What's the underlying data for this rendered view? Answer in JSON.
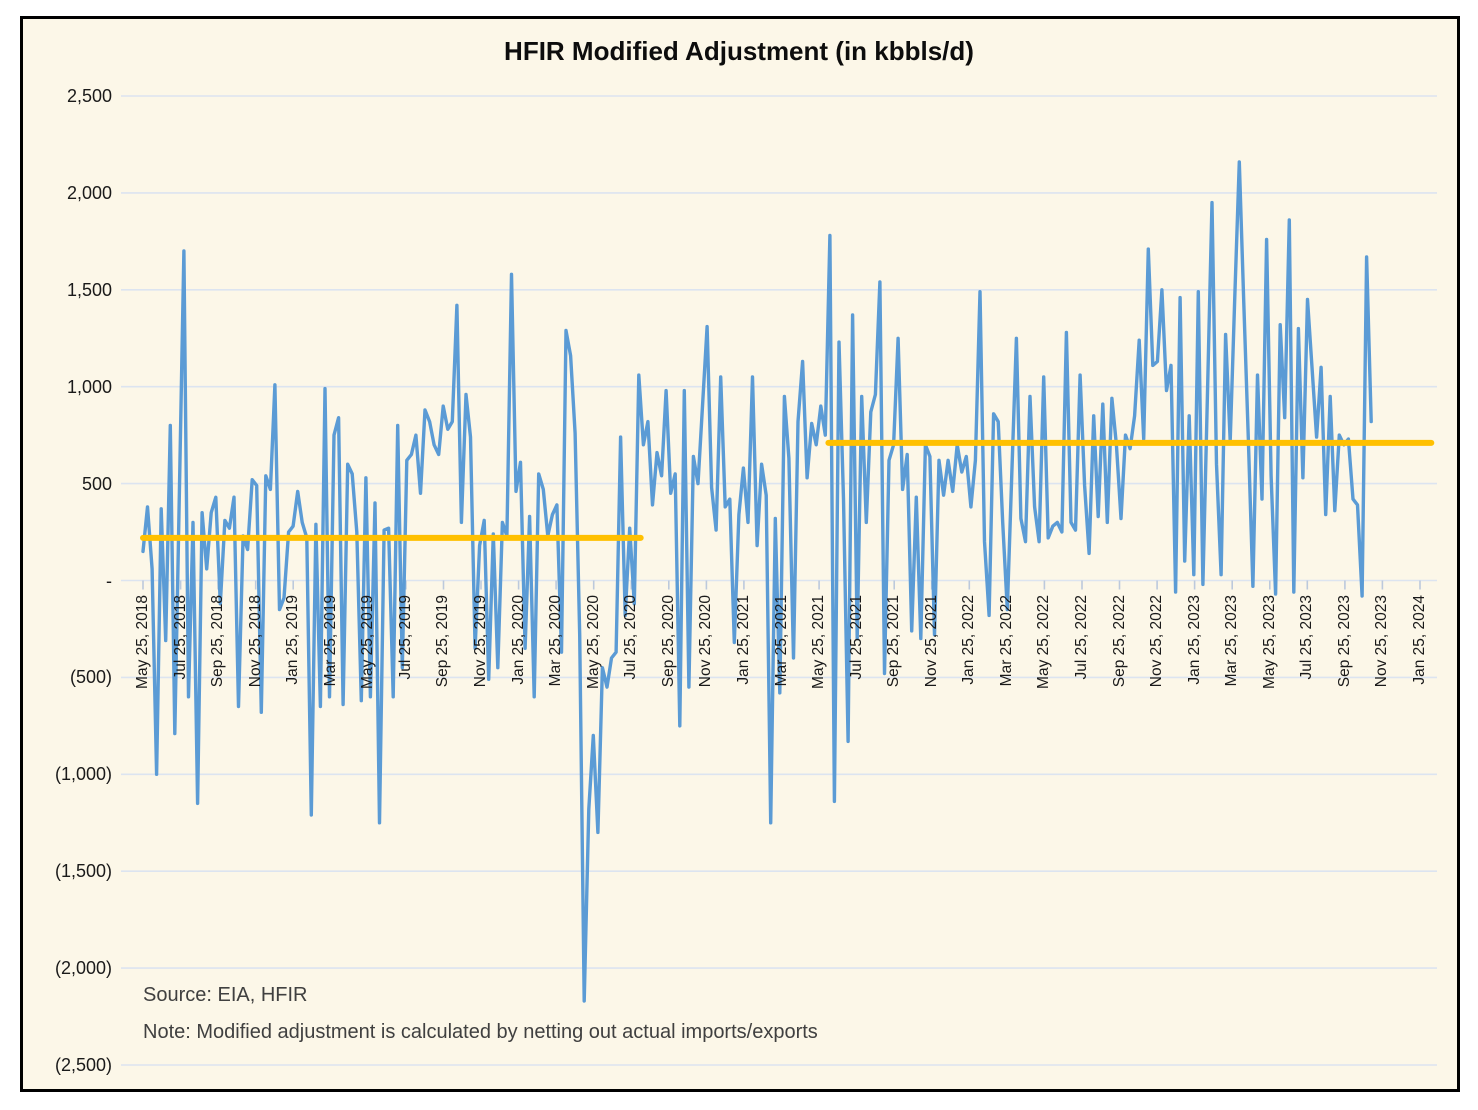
{
  "page": {
    "title": "HFIR Modified Adjustment (in kbbls/d)"
  },
  "notes": {
    "source": "Source: EIA, HFIR",
    "method": "Note: Modified adjustment is calculated by netting out actual imports/exports"
  },
  "colors": {
    "background": "#FCF7E8",
    "plot_line": "#5B9BD5",
    "trend_line": "#FFC000",
    "gridline": "#DCE4F0",
    "tick": "#BCC9DC",
    "frame_border": "#000000",
    "axis_text": "#1A1A1A",
    "note_text": "#404040"
  },
  "chart_data": {
    "type": "line",
    "title": "HFIR Modified Adjustment (in kbbls/d)",
    "unit": "kbbls/d",
    "grid": "horizontal",
    "legend": "none",
    "ylim": [
      -2500,
      2500
    ],
    "y_tick_values": [
      2500,
      2000,
      1500,
      1000,
      500,
      0,
      -500,
      -1000,
      -1500,
      -2000,
      -2500
    ],
    "y_tick_labels": [
      "2,500",
      "2,000",
      "1,500",
      "1,000",
      "500",
      "-",
      "(500)",
      "(1,000)",
      "(1,500)",
      "(2,000)",
      "(2,500)"
    ],
    "x_tick_labels": [
      "May 25, 2018",
      "Jul 25, 2018",
      "Sep 25, 2018",
      "Nov 25, 2018",
      "Jan 25, 2019",
      "Mar 25, 2019",
      "May 25, 2019",
      "Jul 25, 2019",
      "Sep 25, 2019",
      "Nov 25, 2019",
      "Jan 25, 2020",
      "Mar 25, 2020",
      "May 25, 2020",
      "Jul 25, 2020",
      "Sep 25, 2020",
      "Nov 25, 2020",
      "Jan 25, 2021",
      "Mar 25, 2021",
      "May 25, 2021",
      "Jul 25, 2021",
      "Sep 25, 2021",
      "Nov 25, 2021",
      "Jan 25, 2022",
      "Mar 25, 2022",
      "May 25, 2022",
      "Jul 25, 2022",
      "Sep 25, 2022",
      "Nov 25, 2022",
      "Jan 25, 2023",
      "Mar 25, 2023",
      "May 25, 2023",
      "Jul 25, 2023",
      "Sep 25, 2023",
      "Nov 25, 2023",
      "Jan 25, 2024"
    ],
    "x_tick_month_step": 2,
    "x_axis_months_total": 68,
    "data_span_months": 65.4,
    "series": [
      {
        "name": "HFIR Modified Adjustment (weekly)",
        "color": "#5B9BD5",
        "values": [
          150,
          380,
          60,
          -1000,
          370,
          -310,
          800,
          -790,
          460,
          1700,
          -600,
          300,
          -1150,
          350,
          60,
          350,
          430,
          -120,
          310,
          270,
          430,
          -650,
          230,
          160,
          520,
          490,
          -680,
          540,
          470,
          1010,
          -150,
          -90,
          250,
          280,
          460,
          300,
          220,
          -1210,
          290,
          -650,
          990,
          -600,
          750,
          840,
          -640,
          600,
          550,
          250,
          -620,
          530,
          -600,
          400,
          -1250,
          260,
          270,
          -600,
          800,
          -450,
          620,
          650,
          750,
          450,
          880,
          820,
          700,
          650,
          900,
          780,
          820,
          1420,
          300,
          960,
          740,
          -350,
          180,
          310,
          -510,
          240,
          -450,
          300,
          230,
          1580,
          460,
          610,
          -350,
          330,
          -600,
          550,
          470,
          230,
          340,
          390,
          -370,
          1290,
          1160,
          760,
          -280,
          -2170,
          -1180,
          -800,
          -1300,
          -450,
          -550,
          -400,
          -370,
          740,
          -180,
          270,
          -120,
          1060,
          700,
          820,
          390,
          660,
          540,
          980,
          450,
          550,
          -750,
          980,
          -550,
          640,
          500,
          900,
          1310,
          480,
          260,
          1050,
          380,
          420,
          -320,
          340,
          580,
          300,
          1050,
          180,
          600,
          440,
          -1250,
          320,
          -580,
          950,
          630,
          -400,
          820,
          1130,
          530,
          810,
          700,
          900,
          750,
          1780,
          -1140,
          1230,
          420,
          -830,
          1370,
          -300,
          950,
          300,
          870,
          960,
          1540,
          -480,
          620,
          700,
          1250,
          470,
          650,
          -260,
          430,
          -300,
          700,
          640,
          -280,
          620,
          440,
          620,
          460,
          700,
          560,
          640,
          380,
          620,
          1490,
          200,
          -180,
          860,
          820,
          300,
          -150,
          550,
          1250,
          320,
          200,
          950,
          380,
          200,
          1050,
          220,
          280,
          300,
          250,
          1280,
          300,
          260,
          1060,
          490,
          140,
          850,
          330,
          910,
          300,
          940,
          700,
          320,
          750,
          680,
          850,
          1240,
          730,
          1710,
          1110,
          1130,
          1500,
          980,
          1110,
          -60,
          1460,
          100,
          850,
          30,
          1490,
          -20,
          950,
          1950,
          600,
          30,
          1270,
          720,
          1450,
          2160,
          1430,
          720,
          -30,
          1060,
          420,
          1760,
          540,
          -70,
          1320,
          840,
          1860,
          -60,
          1300,
          530,
          1450,
          1100,
          740,
          1100,
          340,
          950,
          360,
          750,
          700,
          730,
          420,
          390,
          -80,
          1670,
          820
        ]
      }
    ],
    "trend_lines": [
      {
        "name": "trend-level-2018-to-mid2020",
        "value": 220,
        "start_month": 0,
        "end_month": 26.5,
        "color": "#FFC000"
      },
      {
        "name": "trend-level-mid2021-to-2024",
        "value": 710,
        "start_month": 36.5,
        "end_month": 68.6,
        "color": "#FFC000"
      }
    ]
  }
}
